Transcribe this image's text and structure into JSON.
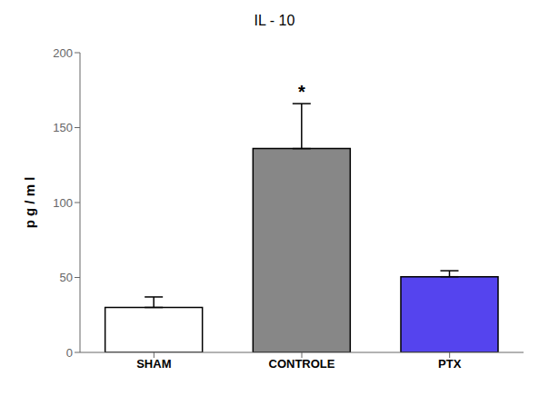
{
  "chart_data": {
    "type": "bar",
    "title": "IL - 10",
    "ylabel": "p g / m l",
    "categories": [
      "SHAM",
      "CONTROLE",
      "PTX"
    ],
    "values": [
      30.0,
      136.0,
      50.5
    ],
    "errors": [
      7.0,
      30.0,
      4.0
    ],
    "colors": [
      "#ffffff",
      "#878787",
      "#5544ee"
    ],
    "ylim": [
      0,
      200
    ],
    "yticks": [
      0,
      50,
      100,
      150,
      200
    ],
    "grid": false,
    "annotations": [
      {
        "text": "*",
        "category": "CONTROLE"
      }
    ]
  }
}
